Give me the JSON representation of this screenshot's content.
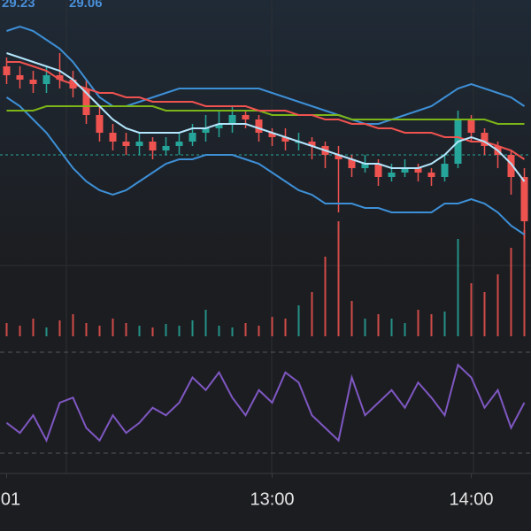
{
  "chart_data": {
    "type": "candlestick",
    "legend_values": [
      29.23,
      29.06
    ],
    "ylim": [
      29.0,
      29.6
    ],
    "up_color": "#26a69a",
    "down_color": "#ef5350",
    "price_line": 29.25,
    "xticks": [
      {
        "value": 0,
        "label": "01"
      },
      {
        "value": 20,
        "label": "13:00"
      },
      {
        "value": 35,
        "label": "14:00"
      }
    ],
    "ohlc": [
      [
        29.45,
        29.47,
        29.41,
        29.43
      ],
      [
        29.43,
        29.45,
        29.4,
        29.42
      ],
      [
        29.42,
        29.44,
        29.39,
        29.41
      ],
      [
        29.41,
        29.45,
        29.39,
        29.43
      ],
      [
        29.43,
        29.48,
        29.4,
        29.42
      ],
      [
        29.42,
        29.44,
        29.38,
        29.4
      ],
      [
        29.4,
        29.42,
        29.32,
        29.34
      ],
      [
        29.34,
        29.36,
        29.28,
        29.3
      ],
      [
        29.3,
        29.32,
        29.26,
        29.28
      ],
      [
        29.28,
        29.3,
        29.25,
        29.27
      ],
      [
        29.27,
        29.3,
        29.25,
        29.28
      ],
      [
        29.28,
        29.29,
        29.24,
        29.26
      ],
      [
        29.26,
        29.29,
        29.25,
        29.27
      ],
      [
        29.27,
        29.3,
        29.25,
        29.28
      ],
      [
        29.28,
        29.32,
        29.27,
        29.3
      ],
      [
        29.3,
        29.34,
        29.28,
        29.31
      ],
      [
        29.31,
        29.35,
        29.29,
        29.32
      ],
      [
        29.32,
        29.36,
        29.3,
        29.34
      ],
      [
        29.34,
        29.35,
        29.31,
        29.33
      ],
      [
        29.33,
        29.34,
        29.28,
        29.3
      ],
      [
        29.3,
        29.31,
        29.27,
        29.29
      ],
      [
        29.29,
        29.31,
        29.26,
        29.28
      ],
      [
        29.28,
        29.3,
        29.26,
        29.28
      ],
      [
        29.28,
        29.29,
        29.24,
        29.27
      ],
      [
        29.27,
        29.28,
        29.22,
        29.25
      ],
      [
        29.25,
        29.27,
        29.12,
        29.24
      ],
      [
        29.24,
        29.25,
        29.2,
        29.22
      ],
      [
        29.22,
        29.25,
        29.21,
        29.23
      ],
      [
        29.23,
        29.24,
        29.18,
        29.2
      ],
      [
        29.2,
        29.23,
        29.19,
        29.21
      ],
      [
        29.21,
        29.24,
        29.2,
        29.22
      ],
      [
        29.22,
        29.23,
        29.19,
        29.21
      ],
      [
        29.21,
        29.22,
        29.18,
        29.2
      ],
      [
        29.2,
        29.25,
        29.19,
        29.23
      ],
      [
        29.23,
        29.35,
        29.22,
        29.33
      ],
      [
        29.33,
        29.34,
        29.28,
        29.3
      ],
      [
        29.3,
        29.31,
        29.25,
        29.27
      ],
      [
        29.27,
        29.28,
        29.22,
        29.25
      ],
      [
        29.25,
        29.26,
        29.16,
        29.2
      ],
      [
        29.2,
        29.22,
        29.06,
        29.1
      ]
    ],
    "series": [
      {
        "color": "#3d8fd6",
        "values": [
          29.53,
          29.54,
          29.53,
          29.51,
          29.49,
          29.46,
          29.42,
          29.38,
          29.36,
          29.36,
          29.37,
          29.38,
          29.39,
          29.4,
          29.4,
          29.4,
          29.4,
          29.4,
          29.4,
          29.4,
          29.39,
          29.38,
          29.37,
          29.36,
          29.35,
          29.34,
          29.33,
          29.32,
          29.32,
          29.33,
          29.34,
          29.35,
          29.36,
          29.38,
          29.4,
          29.41,
          29.4,
          29.39,
          29.38,
          29.36
        ]
      },
      {
        "color": "#3d8fd6",
        "values": [
          29.38,
          29.36,
          29.33,
          29.3,
          29.26,
          29.22,
          29.19,
          29.17,
          29.16,
          29.17,
          29.19,
          29.21,
          29.23,
          29.24,
          29.24,
          29.25,
          29.25,
          29.25,
          29.24,
          29.23,
          29.21,
          29.19,
          29.17,
          29.16,
          29.14,
          29.14,
          29.14,
          29.13,
          29.13,
          29.12,
          29.12,
          29.12,
          29.12,
          29.14,
          29.14,
          29.15,
          29.14,
          29.12,
          29.09,
          29.07
        ]
      },
      {
        "color": "#7cb518",
        "values": [
          29.35,
          29.35,
          29.35,
          29.36,
          29.36,
          29.36,
          29.36,
          29.36,
          29.36,
          29.36,
          29.36,
          29.36,
          29.35,
          29.35,
          29.35,
          29.35,
          29.35,
          29.35,
          29.35,
          29.35,
          29.34,
          29.34,
          29.34,
          29.34,
          29.34,
          29.34,
          29.33,
          29.33,
          29.33,
          29.33,
          29.33,
          29.33,
          29.33,
          29.33,
          29.33,
          29.33,
          29.33,
          29.32,
          29.32,
          29.32
        ]
      },
      {
        "color": "#f0524f",
        "values": [
          29.46,
          29.46,
          29.45,
          29.44,
          29.42,
          29.41,
          29.4,
          29.39,
          29.39,
          29.38,
          29.38,
          29.37,
          29.37,
          29.37,
          29.37,
          29.36,
          29.36,
          29.36,
          29.36,
          29.35,
          29.35,
          29.35,
          29.34,
          29.34,
          29.33,
          29.33,
          29.32,
          29.32,
          29.31,
          29.31,
          29.3,
          29.3,
          29.3,
          29.29,
          29.29,
          29.28,
          29.28,
          29.27,
          29.26,
          29.24
        ]
      },
      {
        "color": "#b3e5fc",
        "values": [
          29.48,
          29.47,
          29.46,
          29.45,
          29.44,
          29.42,
          29.39,
          29.36,
          29.33,
          29.31,
          29.3,
          29.3,
          29.3,
          29.3,
          29.31,
          29.31,
          29.32,
          29.32,
          29.32,
          29.31,
          29.3,
          29.29,
          29.28,
          29.27,
          29.26,
          29.25,
          29.24,
          29.23,
          29.23,
          29.22,
          29.22,
          29.22,
          29.23,
          29.25,
          29.28,
          29.29,
          29.28,
          29.26,
          29.23,
          29.19
        ]
      }
    ],
    "volume": {
      "ylim": [
        0,
        140
      ],
      "values": [
        15,
        12,
        20,
        10,
        18,
        25,
        15,
        12,
        20,
        15,
        12,
        10,
        14,
        12,
        18,
        30,
        12,
        10,
        15,
        12,
        22,
        20,
        35,
        50,
        90,
        130,
        40,
        20,
        25,
        20,
        15,
        30,
        25,
        28,
        110,
        60,
        50,
        70,
        100,
        120
      ]
    },
    "rsi": {
      "color": "#7e57c2",
      "ylim": [
        30,
        70
      ],
      "values": [
        42,
        38,
        45,
        35,
        50,
        52,
        40,
        35,
        45,
        38,
        42,
        48,
        45,
        50,
        60,
        55,
        62,
        52,
        45,
        55,
        50,
        62,
        58,
        45,
        40,
        35,
        60,
        45,
        50,
        55,
        48,
        58,
        52,
        45,
        65,
        60,
        48,
        55,
        40,
        50
      ]
    }
  }
}
